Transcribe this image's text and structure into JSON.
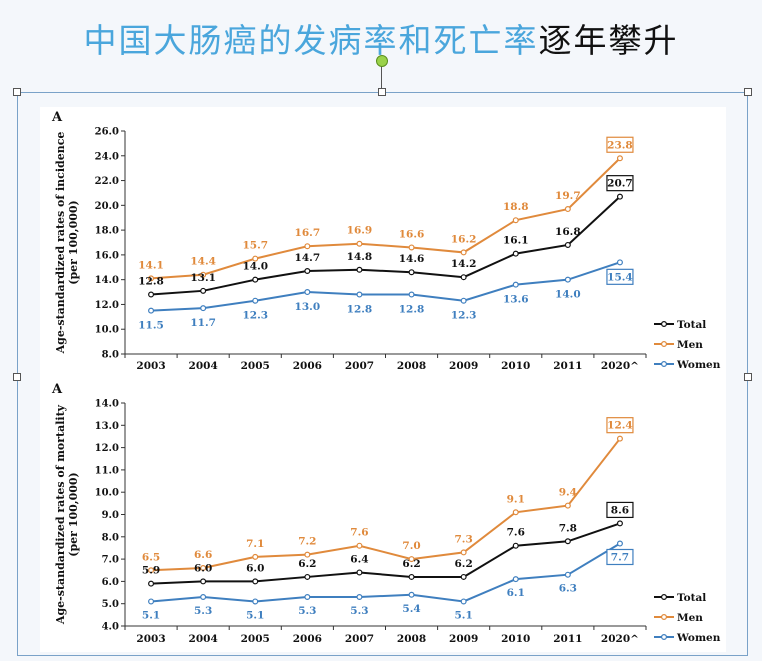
{
  "slide": {
    "title_part1": "中国大肠癌的发病率和死亡率",
    "title_part2": "逐年攀升"
  },
  "colors": {
    "total": "#111111",
    "men": "#e08a3c",
    "women": "#3f7fbf",
    "title_blue": "#4aa6dc"
  },
  "chart_data": [
    {
      "type": "line",
      "panel_label": "A",
      "ylabel_line1": "Age-standardized rates of incidence",
      "ylabel_line2": "(per 100,000)",
      "ylim": [
        8.0,
        26.0
      ],
      "yticks": [
        "8.0",
        "10.0",
        "12.0",
        "14.0",
        "16.0",
        "18.0",
        "20.0",
        "22.0",
        "24.0",
        "26.0"
      ],
      "categories": [
        "2003",
        "2004",
        "2005",
        "2006",
        "2007",
        "2008",
        "2009",
        "2010",
        "2011",
        "2020^"
      ],
      "series": [
        {
          "name": "Total",
          "key": "total",
          "values": [
            12.8,
            13.1,
            14.0,
            14.7,
            14.8,
            14.6,
            14.2,
            16.1,
            16.8,
            20.7
          ],
          "labels": [
            "12.8",
            "13.1",
            "14.0",
            "14.7",
            "14.8",
            "14.6",
            "14.2",
            "16.1",
            "16.8",
            "20.7"
          ]
        },
        {
          "name": "Men",
          "key": "men",
          "values": [
            14.1,
            14.4,
            15.7,
            16.7,
            16.9,
            16.6,
            16.2,
            18.8,
            19.7,
            23.8
          ],
          "labels": [
            "14.1",
            "14.4",
            "15.7",
            "16.7",
            "16.9",
            "16.6",
            "16.2",
            "18.8",
            "19.7",
            "23.8"
          ]
        },
        {
          "name": "Women",
          "key": "women",
          "values": [
            11.5,
            11.7,
            12.3,
            13.0,
            12.8,
            12.8,
            12.3,
            13.6,
            14.0,
            15.4
          ],
          "labels": [
            "11.5",
            "11.7",
            "12.3",
            "13.0",
            "12.8",
            "12.8",
            "12.3",
            "13.6",
            "14.0",
            "15.4"
          ]
        }
      ],
      "legend_position": "right"
    },
    {
      "type": "line",
      "panel_label": "A",
      "ylabel_line1": "Age-standardized rates of mortality",
      "ylabel_line2": "(per 100,000)",
      "ylim": [
        4.0,
        14.0
      ],
      "yticks": [
        "4.0",
        "5.0",
        "6.0",
        "7.0",
        "8.0",
        "9.0",
        "10.0",
        "11.0",
        "12.0",
        "13.0",
        "14.0"
      ],
      "categories": [
        "2003",
        "2004",
        "2005",
        "2006",
        "2007",
        "2008",
        "2009",
        "2010",
        "2011",
        "2020^"
      ],
      "series": [
        {
          "name": "Total",
          "key": "total",
          "values": [
            5.9,
            6.0,
            6.0,
            6.2,
            6.4,
            6.2,
            6.2,
            7.6,
            7.8,
            8.6
          ],
          "labels": [
            "5.9",
            "6.0",
            "6.0",
            "6.2",
            "6.4",
            "6.2",
            "6.2",
            "7.6",
            "7.8",
            "8.6"
          ]
        },
        {
          "name": "Men",
          "key": "men",
          "values": [
            6.5,
            6.6,
            7.1,
            7.2,
            7.6,
            7.0,
            7.3,
            9.1,
            9.4,
            12.4
          ],
          "labels": [
            "6.5",
            "6.6",
            "7.1",
            "7.2",
            "7.6",
            "7.0",
            "7.3",
            "9.1",
            "9.4",
            "12.4"
          ]
        },
        {
          "name": "Women",
          "key": "women",
          "values": [
            5.1,
            5.3,
            5.1,
            5.3,
            5.3,
            5.4,
            5.1,
            6.1,
            6.3,
            7.7
          ],
          "labels": [
            "5.1",
            "5.3",
            "5.1",
            "5.3",
            "5.3",
            "5.4",
            "5.1",
            "6.1",
            "6.3",
            "7.7"
          ]
        }
      ],
      "legend_position": "right"
    }
  ]
}
